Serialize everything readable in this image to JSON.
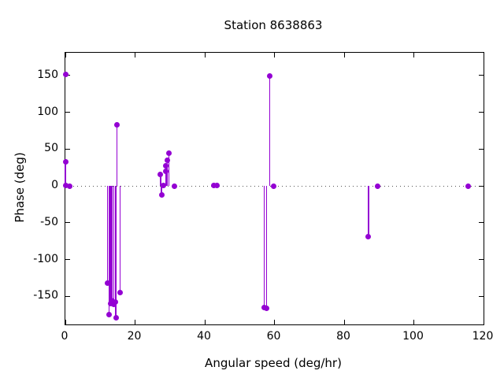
{
  "chart_data": {
    "type": "scatter",
    "style": "impulses-with-points (stem plot)",
    "title": "Station 8638863",
    "xlabel": "Angular speed (deg/hr)",
    "ylabel": "Phase (deg)",
    "xlim": [
      0,
      120
    ],
    "ylim": [
      -188,
      181
    ],
    "x_ticks": [
      0,
      20,
      40,
      60,
      80,
      100,
      120
    ],
    "y_ticks": [
      -150,
      -100,
      -50,
      0,
      50,
      100,
      150
    ],
    "grid": "dotted zero line only, ticks mirrored on all four borders",
    "legend": "none",
    "colors": {
      "series": "#9400d3",
      "axis": "#000000",
      "zero_line": "#555555",
      "background": "#ffffff"
    },
    "points": [
      {
        "x": 0,
        "y": 152,
        "stem": false
      },
      {
        "x": 0,
        "y": 33,
        "stem": true
      },
      {
        "x": 0.2,
        "y": 1,
        "stem": true
      },
      {
        "x": 1.3,
        "y": 0,
        "stem": true
      },
      {
        "x": 12.1,
        "y": -132,
        "stem": true
      },
      {
        "x": 12.5,
        "y": -175,
        "stem": true
      },
      {
        "x": 12.9,
        "y": -160,
        "stem": true
      },
      {
        "x": 13.3,
        "y": -155,
        "stem": true
      },
      {
        "x": 13.9,
        "y": -161,
        "stem": true
      },
      {
        "x": 14.4,
        "y": -158,
        "stem": true
      },
      {
        "x": 14.5,
        "y": -179,
        "stem": true
      },
      {
        "x": 14.8,
        "y": 83,
        "stem": true
      },
      {
        "x": 15.7,
        "y": -145,
        "stem": true
      },
      {
        "x": 27.3,
        "y": 16,
        "stem": true
      },
      {
        "x": 27.6,
        "y": -12,
        "stem": true
      },
      {
        "x": 28.2,
        "y": 1,
        "stem": true
      },
      {
        "x": 28.8,
        "y": 20,
        "stem": true
      },
      {
        "x": 28.9,
        "y": 27,
        "stem": true
      },
      {
        "x": 29.3,
        "y": 35,
        "stem": true
      },
      {
        "x": 29.7,
        "y": 45,
        "stem": true
      },
      {
        "x": 31.2,
        "y": 0,
        "stem": true
      },
      {
        "x": 42.5,
        "y": 1,
        "stem": true
      },
      {
        "x": 43.5,
        "y": 1,
        "stem": true
      },
      {
        "x": 57.1,
        "y": -165,
        "stem": true
      },
      {
        "x": 57.7,
        "y": -166,
        "stem": true
      },
      {
        "x": 58.7,
        "y": 149,
        "stem": true
      },
      {
        "x": 59.8,
        "y": 0,
        "stem": true
      },
      {
        "x": 87.0,
        "y": -69,
        "stem": true
      },
      {
        "x": 89.6,
        "y": 0,
        "stem": true
      },
      {
        "x": 115.7,
        "y": 0,
        "stem": true
      }
    ]
  }
}
